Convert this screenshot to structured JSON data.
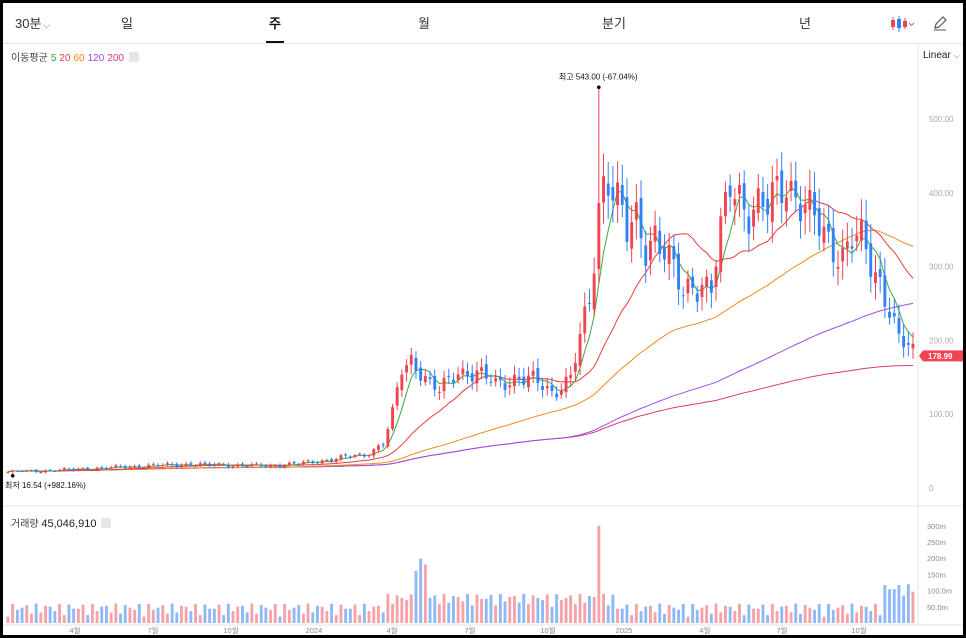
{
  "tabs": {
    "interval": "30분",
    "items": [
      "일",
      "주",
      "월",
      "분기",
      "년"
    ],
    "active": "주"
  },
  "legend": {
    "ma_title": "이동평균",
    "ma_periods": [
      "5",
      "20",
      "60",
      "120",
      "200"
    ]
  },
  "scale_label": "Linear",
  "colors": {
    "up": "#f04452",
    "down": "#3182f6",
    "vol_up": "#f5a3a9",
    "vol_down": "#8fb8f7",
    "ma5": "#3aab3a",
    "ma20": "#ee3b3b",
    "ma60": "#f28a1e",
    "ma120": "#9e4ee6",
    "ma200": "#d8397c"
  },
  "volume": {
    "title": "거래량",
    "value": "45,046,910",
    "ticks": [
      "300m",
      "250m",
      "200m",
      "150m",
      "100.0m",
      "50.0m"
    ]
  },
  "chart_data": {
    "type": "candlestick",
    "price_axis": {
      "ticks": [
        "500.00",
        "400.00",
        "300.00",
        "200.00",
        "100.00",
        "0"
      ],
      "range": [
        0,
        550
      ]
    },
    "x_labels": [
      "4월",
      "7월",
      "10월",
      "2024",
      "4월",
      "7월",
      "10월",
      "2025",
      "4월",
      "7월",
      "10월"
    ],
    "current_price": "178.99",
    "high": {
      "label": "최고",
      "value": "543.00 (-67.04%)",
      "price": 543.0
    },
    "low": {
      "label": "최저",
      "value": "16.54 (+982.16%)",
      "price": 16.54
    },
    "series": [
      {
        "name": "5",
        "type": "line"
      },
      {
        "name": "20",
        "type": "line"
      },
      {
        "name": "60",
        "type": "line"
      },
      {
        "name": "120",
        "type": "line"
      },
      {
        "name": "200",
        "type": "line"
      }
    ]
  }
}
